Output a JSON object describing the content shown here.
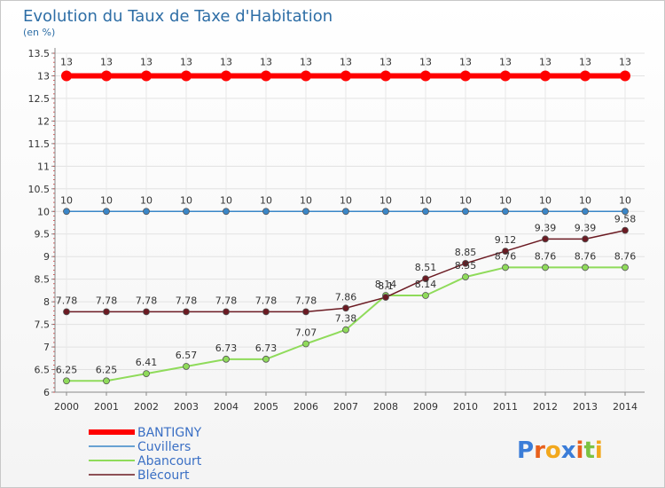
{
  "chart_data": {
    "type": "line",
    "title": "Evolution du Taux de Taxe d'Habitation",
    "subtitle": "(en %)",
    "x": [
      "2000",
      "2001",
      "2002",
      "2003",
      "2004",
      "2005",
      "2006",
      "2007",
      "2008",
      "2009",
      "2010",
      "2011",
      "2012",
      "2013",
      "2014"
    ],
    "ylim": [
      6,
      13.5
    ],
    "yticks": [
      "6",
      "6.5",
      "7",
      "7.5",
      "8",
      "8.5",
      "9",
      "9.5",
      "10",
      "10.5",
      "11",
      "11.5",
      "12",
      "12.5",
      "13",
      "13.5"
    ],
    "series": [
      {
        "name": "BANTIGNY",
        "color": "#ff0000",
        "values": [
          13,
          13,
          13,
          13,
          13,
          13,
          13,
          13,
          13,
          13,
          13,
          13,
          13,
          13,
          13
        ],
        "labels": [
          "13",
          "13",
          "13",
          "13",
          "13",
          "13",
          "13",
          "13",
          "13",
          "13",
          "13",
          "13",
          "13",
          "13",
          "13"
        ]
      },
      {
        "name": "Cuvillers",
        "color": "#3a86c8",
        "values": [
          10,
          10,
          10,
          10,
          10,
          10,
          10,
          10,
          10,
          10,
          10,
          10,
          10,
          10,
          10
        ],
        "labels": [
          "10",
          "10",
          "10",
          "10",
          "10",
          "10",
          "10",
          "10",
          "10",
          "10",
          "10",
          "10",
          "10",
          "10",
          "10"
        ]
      },
      {
        "name": "Abancourt",
        "color": "#8fdb5a",
        "values": [
          6.25,
          6.25,
          6.41,
          6.57,
          6.73,
          6.73,
          7.07,
          7.38,
          8.14,
          8.14,
          8.55,
          8.76,
          8.76,
          8.76,
          8.76
        ],
        "labels": [
          "6.25",
          "6.25",
          "6.41",
          "6.57",
          "6.73",
          "6.73",
          "7.07",
          "7.38",
          "8.14",
          "8.14",
          "8.55",
          "8.76",
          "8.76",
          "8.76",
          "8.76"
        ]
      },
      {
        "name": "Blécourt",
        "color": "#6b1a22",
        "values": [
          7.78,
          7.78,
          7.78,
          7.78,
          7.78,
          7.78,
          7.78,
          7.86,
          8.1,
          8.51,
          8.85,
          9.12,
          9.39,
          9.39,
          9.58
        ],
        "labels": [
          "7.78",
          "7.78",
          "7.78",
          "7.78",
          "7.78",
          "7.78",
          "7.78",
          "7.86",
          "8.1",
          "8.51",
          "8.85",
          "9.12",
          "9.39",
          "9.39",
          "9.58"
        ]
      }
    ],
    "legend": [
      "BANTIGNY",
      "Cuvillers",
      "Abancourt",
      "Blécourt"
    ],
    "legend_position": "bottom-left",
    "grid": true
  },
  "logo": {
    "text": "Proxiti",
    "letters": [
      "P",
      "r",
      "o",
      "x",
      "i",
      "t",
      "i"
    ],
    "colors": [
      "#3b7dd8",
      "#e8601c",
      "#f2a81d",
      "#3b7dd8",
      "#e8601c",
      "#7cc242",
      "#f2a81d"
    ]
  }
}
